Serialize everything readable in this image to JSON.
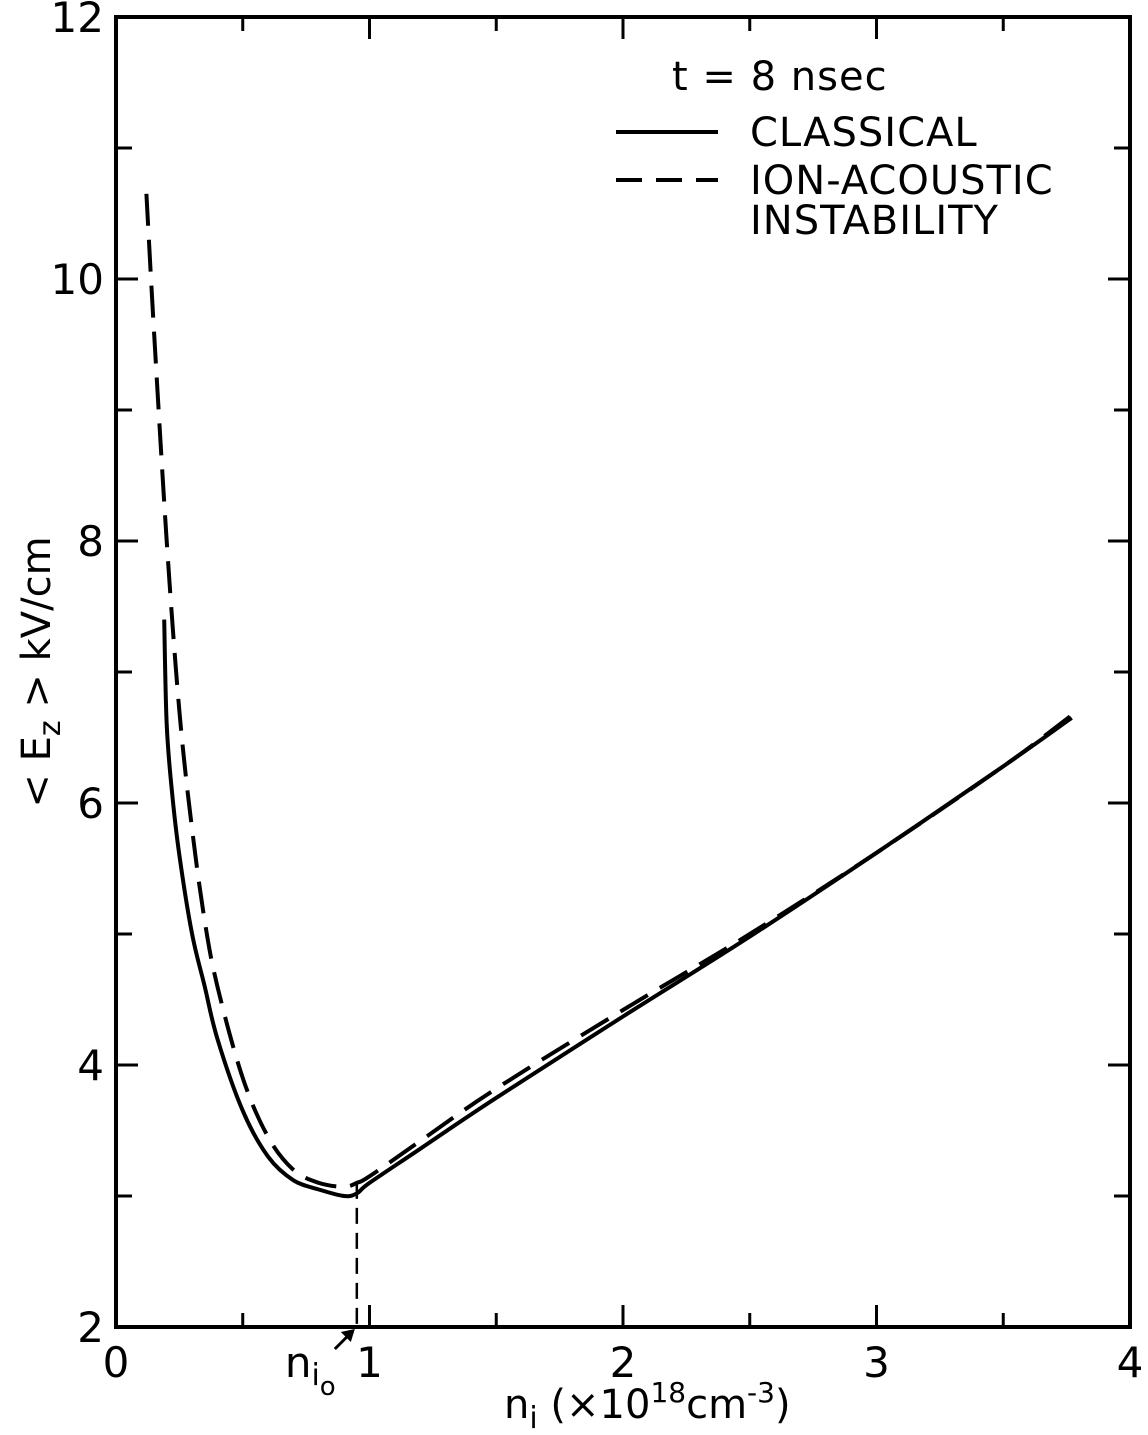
{
  "chart_data": {
    "type": "line",
    "title": "",
    "annotation": "t = 8 nsec",
    "xlabel": {
      "base": "n",
      "sub": "i",
      "paren_open": " (×10",
      "exp": "18",
      "unit": "cm",
      "unit_exp": "-3",
      "paren_close": ")"
    },
    "ylabel": {
      "open": "< E",
      "sub": "z",
      "close": " >  kV/cm"
    },
    "xlim": [
      0,
      4
    ],
    "ylim": [
      2,
      12
    ],
    "x_ticks": [
      0,
      1,
      2,
      3,
      4
    ],
    "x_tick_labels": [
      "0",
      "1",
      "2",
      "3",
      "4"
    ],
    "y_ticks": [
      2,
      4,
      6,
      8,
      10,
      12
    ],
    "y_tick_labels": [
      "2",
      "4",
      "6",
      "8",
      "10",
      "12"
    ],
    "grid": false,
    "legend_position": "top-right",
    "series": [
      {
        "name": "CLASSICAL",
        "style": "solid",
        "x": [
          0.19,
          0.2,
          0.22,
          0.25,
          0.3,
          0.35,
          0.4,
          0.5,
          0.6,
          0.7,
          0.8,
          0.9,
          0.95,
          1.0,
          1.2,
          1.5,
          2.0,
          2.5,
          3.0,
          3.5,
          3.77
        ],
        "y": [
          7.4,
          6.6,
          6.1,
          5.6,
          5.0,
          4.6,
          4.2,
          3.65,
          3.3,
          3.12,
          3.05,
          3.0,
          3.02,
          3.1,
          3.36,
          3.75,
          4.37,
          4.98,
          5.62,
          6.28,
          6.65
        ]
      },
      {
        "name": "ION-ACOUSTIC INSTABILITY",
        "style": "dashed",
        "x": [
          0.12,
          0.15,
          0.2,
          0.25,
          0.3,
          0.35,
          0.4,
          0.5,
          0.6,
          0.7,
          0.8,
          0.9,
          0.95,
          1.0,
          1.2,
          1.5,
          2.0,
          2.5,
          3.0,
          3.5,
          3.77
        ],
        "y": [
          10.65,
          9.6,
          8.0,
          6.7,
          5.8,
          5.1,
          4.6,
          3.9,
          3.45,
          3.2,
          3.1,
          3.07,
          3.1,
          3.15,
          3.42,
          3.82,
          4.42,
          5.0,
          5.62,
          6.28,
          6.67
        ]
      }
    ],
    "marker": {
      "x": 0.95,
      "y_from": 2,
      "y_to": 3.1,
      "label": {
        "base": "n",
        "sub": "i",
        "subsub": "o"
      }
    }
  }
}
